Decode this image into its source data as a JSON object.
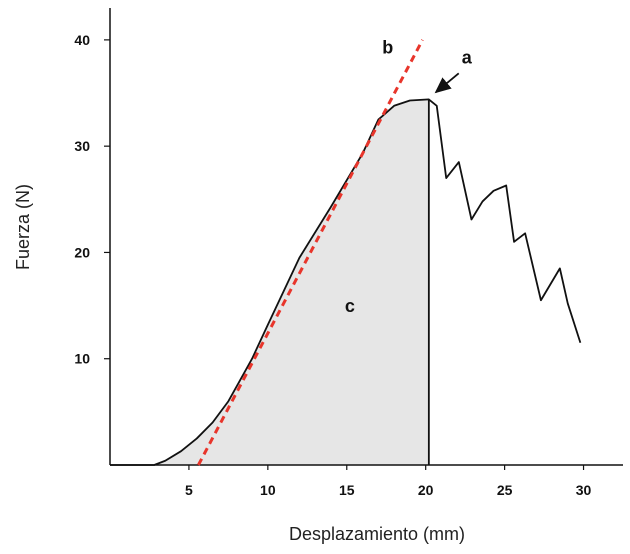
{
  "chart_data": {
    "type": "line",
    "xlabel": "Desplazamiento (mm)",
    "ylabel": "Fuerza (N)",
    "xlim": [
      0,
      32.5
    ],
    "ylim": [
      0,
      43
    ],
    "xticks": [
      5,
      10,
      15,
      20,
      25,
      30
    ],
    "yticks": [
      10,
      20,
      30,
      40
    ],
    "grid": false,
    "legend": "none",
    "series": [
      {
        "values": [
          [
            0.0,
            0.0
          ],
          [
            2.8,
            0.0
          ],
          [
            3.5,
            0.4
          ],
          [
            4.5,
            1.3
          ],
          [
            5.5,
            2.5
          ],
          [
            6.5,
            4.0
          ],
          [
            7.5,
            6.0
          ],
          [
            9.0,
            10.0
          ],
          [
            10.0,
            13.2
          ],
          [
            12.0,
            19.5
          ],
          [
            14.0,
            24.3
          ],
          [
            16.0,
            29.3
          ],
          [
            17.0,
            32.5
          ],
          [
            18.0,
            33.8
          ],
          [
            19.0,
            34.3
          ],
          [
            20.2,
            34.4
          ],
          [
            20.7,
            33.8
          ],
          [
            21.3,
            27.0
          ],
          [
            22.1,
            28.5
          ],
          [
            22.9,
            23.1
          ],
          [
            23.6,
            24.8
          ],
          [
            24.3,
            25.8
          ],
          [
            25.1,
            26.3
          ],
          [
            25.6,
            21.0
          ],
          [
            26.3,
            21.8
          ],
          [
            27.3,
            15.5
          ],
          [
            28.5,
            18.5
          ],
          [
            29.0,
            15.2
          ],
          [
            29.8,
            11.5
          ]
        ],
        "color": "#111111"
      },
      {
        "values": [
          [
            5.6,
            0.0
          ],
          [
            19.8,
            40.0
          ]
        ],
        "color": "#e8352b",
        "style": "dashed"
      }
    ],
    "shaded_area": {
      "x_end": 20.2,
      "color": "#e6e6e6"
    },
    "annotations": [
      {
        "text": "a",
        "x": 22.6,
        "y": 37.8,
        "arrow_to": [
          20.4,
          34.8
        ]
      },
      {
        "text": "b",
        "x": 17.6,
        "y": 38.7
      },
      {
        "text": "c",
        "x": 15.2,
        "y": 14.4
      }
    ]
  }
}
